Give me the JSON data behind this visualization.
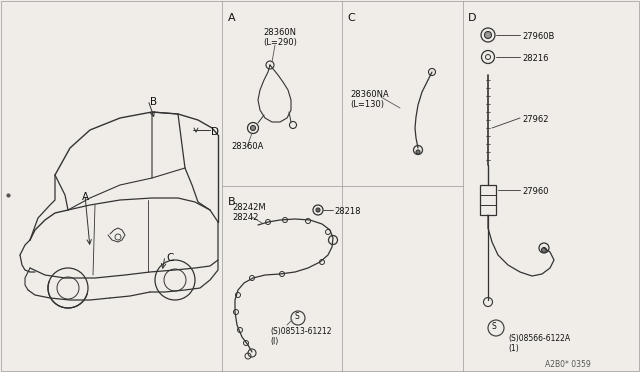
{
  "bg_color": "#f0ede8",
  "line_color": "#333333",
  "text_color": "#111111",
  "section_A_label": "A",
  "section_B_label": "B",
  "section_C_label": "C",
  "section_D_label": "D",
  "part_28360N": "28360N\n(L=290)",
  "part_28360A": "28360A",
  "part_28360NA": "28360NA\n(L=130)",
  "part_28242M": "28242M\n28242",
  "part_28218": "28218",
  "part_screw1": "(S)08513-61212\n(I)",
  "part_27960B": "27960B",
  "part_28216": "28216",
  "part_27962": "27962",
  "part_27960": "27960",
  "part_screw2": "(S)08566-6122A\n(1)",
  "code": "A2B0* 0359"
}
